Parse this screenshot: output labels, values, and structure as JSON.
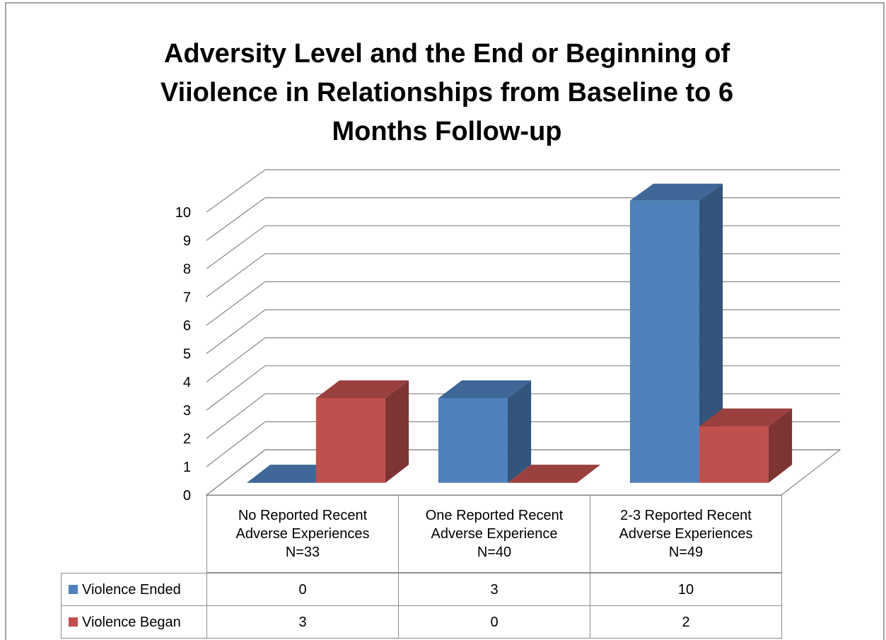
{
  "chart_data": {
    "type": "bar3d",
    "title": [
      "Adversity Level and  the End or Beginning of",
      "Viiolence in Relationships from Baseline to  6",
      "Months Follow-up"
    ],
    "categories": [
      "No Reported Recent Adverse Experiences N=33",
      "One Reported Recent Adverse Experience N=40",
      "2-3 Reported Recent Adverse Experiences N=49"
    ],
    "series": [
      {
        "name": "Violence Ended",
        "color": "#4f81bd",
        "values": [
          0,
          3,
          10
        ]
      },
      {
        "name": "Violence Began",
        "color": "#c0504d",
        "values": [
          3,
          0,
          2
        ]
      }
    ],
    "ylim": [
      0,
      10
    ],
    "yticks": [
      0,
      1,
      2,
      3,
      4,
      5,
      6,
      7,
      8,
      9,
      10
    ],
    "grid": true,
    "data_table": true
  }
}
